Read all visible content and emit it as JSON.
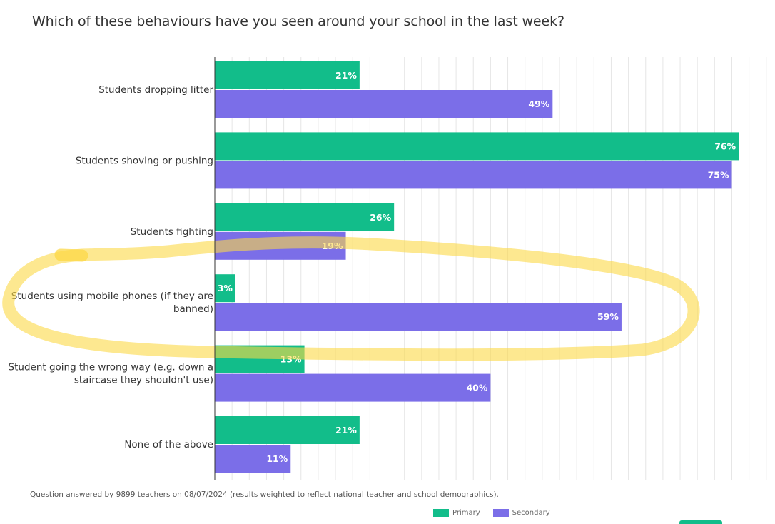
{
  "title": "Which of these behaviours have you seen around your school in the last week?",
  "footnote": "Question answered by 9899 teachers on 08/07/2024 (results weighted to reflect national teacher and school demographics).",
  "legend": {
    "items": [
      {
        "label": "Primary",
        "color": "#12bd8a"
      },
      {
        "label": "Secondary",
        "color": "#7b6ee8"
      }
    ]
  },
  "highlight_color": "#fcd846",
  "chart_data": {
    "type": "bar",
    "orientation": "horizontal",
    "categories": [
      "Students dropping litter",
      "Students shoving or pushing",
      "Students fighting",
      "Students using mobile phones (if they are banned)",
      "Student going the wrong way (e.g. down a staircase they shouldn't use)",
      "None of the above"
    ],
    "category_lines": [
      [
        "Students dropping litter"
      ],
      [
        "Students shoving or pushing"
      ],
      [
        "Students fighting"
      ],
      [
        "Students using mobile phones (if they are",
        "banned)"
      ],
      [
        "Student going the wrong way (e.g. down a",
        "staircase they shouldn't use)"
      ],
      [
        "None of the above"
      ]
    ],
    "series": [
      {
        "name": "Primary",
        "color": "#12bd8a",
        "values": [
          21,
          76,
          26,
          3,
          13,
          21
        ],
        "labels": [
          "21%",
          "76%",
          "26%",
          "3%",
          "13%",
          "21%"
        ]
      },
      {
        "name": "Secondary",
        "color": "#7b6ee8",
        "values": [
          49,
          75,
          19,
          59,
          40,
          11
        ],
        "labels": [
          "49%",
          "75%",
          "19%",
          "59%",
          "40%",
          "11%"
        ]
      }
    ],
    "xlim": [
      0,
      80
    ],
    "grid": true,
    "legend_position": "bottom-right",
    "highlighted_category": "Students using mobile phones (if they are banned)"
  }
}
